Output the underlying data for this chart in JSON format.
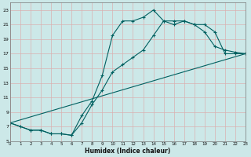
{
  "xlabel": "Humidex (Indice chaleur)",
  "bg_color": "#cce8e8",
  "line_color": "#006060",
  "grid_color": "#b0d4d4",
  "x_ticks": [
    0,
    1,
    2,
    3,
    4,
    5,
    6,
    7,
    8,
    9,
    10,
    11,
    12,
    13,
    14,
    15,
    16,
    17,
    18,
    19,
    20,
    21,
    22,
    23
  ],
  "y_ticks": [
    5,
    7,
    9,
    11,
    13,
    15,
    17,
    19,
    21,
    23
  ],
  "xlim": [
    0,
    23
  ],
  "ylim": [
    5,
    24
  ],
  "line1_x": [
    0,
    1,
    2,
    3,
    4,
    5,
    6,
    7,
    8,
    9,
    10,
    11,
    12,
    13,
    14,
    15,
    16,
    17,
    18,
    19,
    20,
    21,
    22,
    23
  ],
  "line1_y": [
    7.5,
    7.0,
    6.5,
    6.5,
    6.0,
    6.0,
    5.8,
    8.5,
    10.5,
    14.0,
    19.5,
    21.5,
    21.5,
    22.0,
    23.0,
    21.5,
    21.5,
    21.5,
    21.0,
    20.0,
    18.0,
    17.5,
    17.2,
    17.0
  ],
  "line2_x": [
    0,
    2,
    3,
    4,
    5,
    6,
    7,
    8,
    9,
    10,
    11,
    12,
    13,
    14,
    15,
    16,
    17,
    18,
    19,
    20,
    21,
    22,
    23
  ],
  "line2_y": [
    7.5,
    6.5,
    6.5,
    6.0,
    6.0,
    5.8,
    7.5,
    10.0,
    12.0,
    14.5,
    15.5,
    16.5,
    17.5,
    19.5,
    21.5,
    21.0,
    21.5,
    21.0,
    21.0,
    20.0,
    17.0,
    17.0,
    17.0
  ],
  "line3_x": [
    0,
    23
  ],
  "line3_y": [
    7.5,
    17.0
  ],
  "line4_x": [
    0,
    23
  ],
  "line4_y": [
    7.5,
    17.0
  ]
}
